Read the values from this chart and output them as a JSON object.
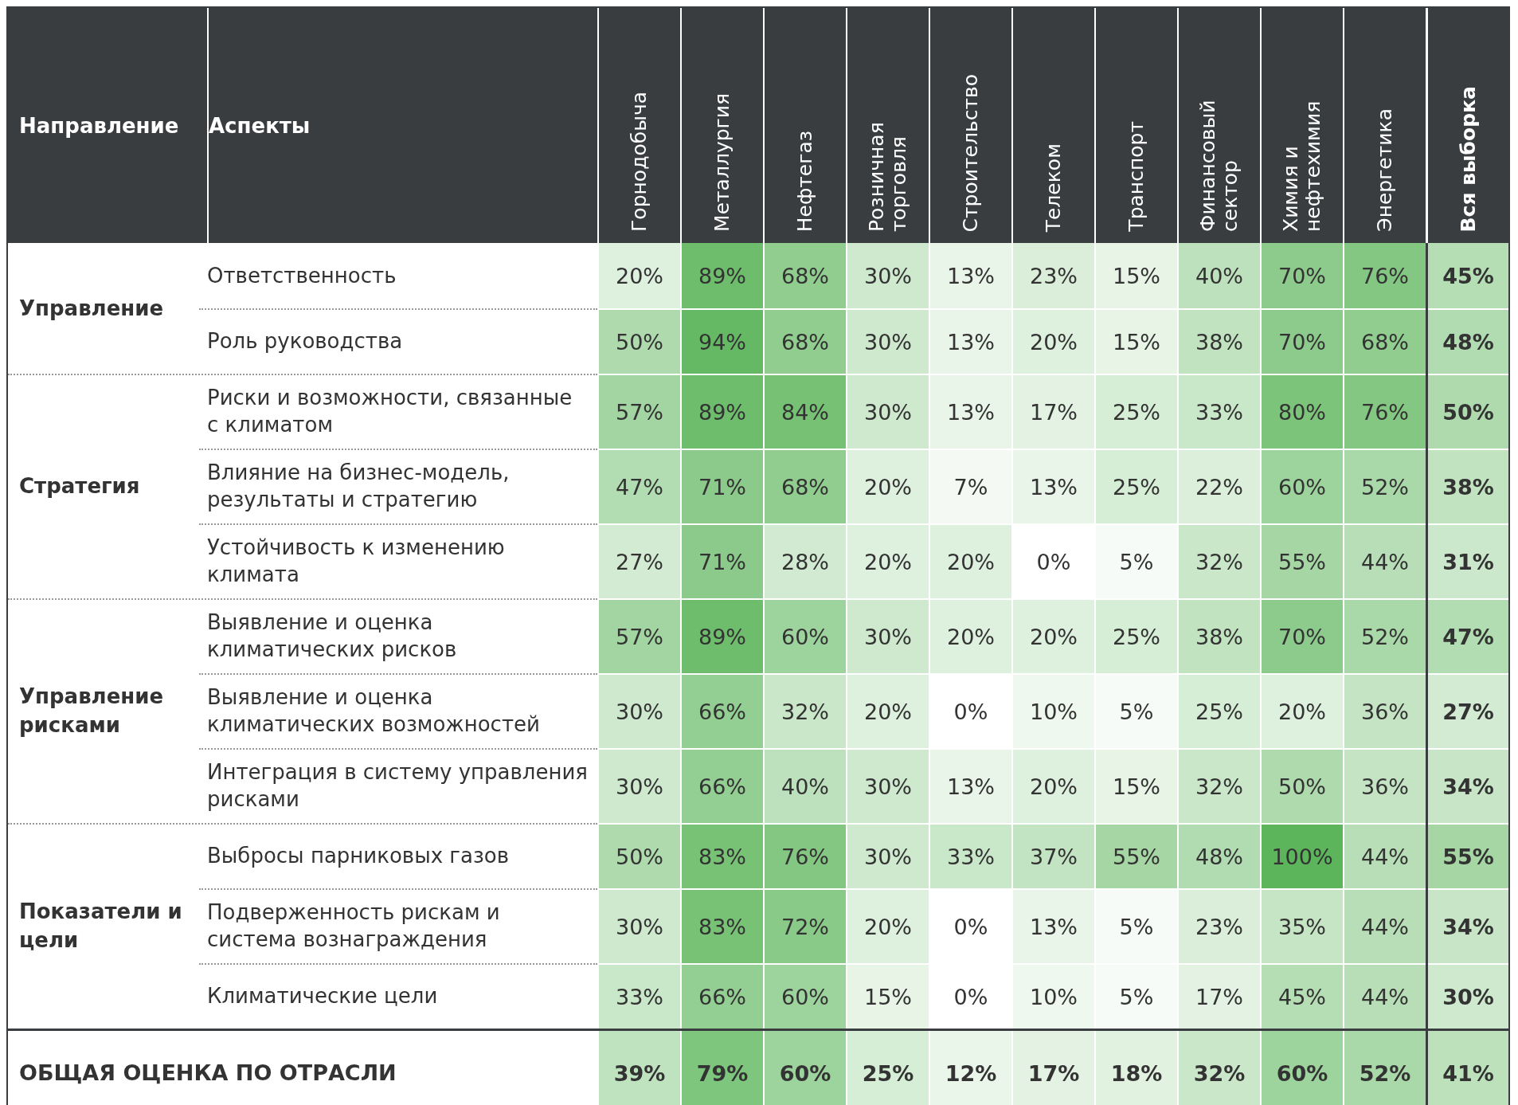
{
  "chart_data": {
    "type": "heatmap",
    "annotations": [
      "Направление"
    ],
    "ylabel": "Аспекты",
    "categories": [
      "Горнодобыча",
      "Металлургия",
      "Нефтегаз",
      "Розничная торговля",
      "Строительство",
      "Телеком",
      "Транспорт",
      "Финансовый сектор",
      "Химия и нефтехимия",
      "Энергетика",
      "Вся выборка"
    ],
    "y_categories": [
      "Ответственность",
      "Роль руководства",
      "Риски и возможности, связанные с климатом",
      "Влияние на бизнес-модель, результаты и стратегию",
      "Устойчивость к изменению климата",
      "Выявление и оценка климатических рисков",
      "Выявление и оценка климатических возможностей",
      "Интеграция в систему управления рисками",
      "Выбросы парниковых газов",
      "Подверженность рискам и система вознаграждения",
      "Климатические цели",
      null
    ],
    "y2_categories": [
      "Управление",
      null,
      null,
      "Стратегия",
      null,
      null,
      "Управление рисками",
      null,
      null,
      "Показатели и цели",
      null,
      "ОБЩАЯ ОЦЕНКА ПО ОТРАСЛИ"
    ],
    "colors": [
      "#ffffff",
      "#5cb55a"
    ],
    "cells": [
      [
        20,
        89,
        68,
        30,
        13,
        23,
        15,
        40,
        70,
        76,
        45
      ],
      [
        50,
        94,
        68,
        30,
        13,
        20,
        15,
        38,
        70,
        68,
        48
      ],
      [
        57,
        89,
        84,
        30,
        13,
        17,
        25,
        33,
        80,
        76,
        50
      ],
      [
        47,
        71,
        68,
        20,
        7,
        13,
        25,
        22,
        60,
        52,
        38
      ],
      [
        27,
        71,
        28,
        20,
        20,
        0,
        5,
        32,
        55,
        44,
        31
      ],
      [
        57,
        89,
        60,
        30,
        20,
        20,
        25,
        38,
        70,
        52,
        47
      ],
      [
        30,
        66,
        32,
        20,
        0,
        10,
        5,
        25,
        20,
        36,
        27
      ],
      [
        30,
        66,
        40,
        30,
        13,
        20,
        15,
        32,
        50,
        36,
        34
      ],
      [
        50,
        83,
        76,
        30,
        33,
        37,
        55,
        48,
        100,
        44,
        55
      ],
      [
        30,
        83,
        72,
        20,
        0,
        13,
        5,
        23,
        35,
        44,
        34
      ],
      [
        33,
        66,
        60,
        15,
        0,
        10,
        5,
        17,
        45,
        44,
        30
      ],
      [
        39,
        79,
        60,
        25,
        12,
        17,
        18,
        32,
        60,
        52,
        41
      ]
    ],
    "cell_labels": [
      [
        "20%",
        "89%",
        "68%",
        "30%",
        "13%",
        "23%",
        "15%",
        "40%",
        "70%",
        "76%",
        "45%"
      ],
      [
        "50%",
        "94%",
        "68%",
        "30%",
        "13%",
        "20%",
        "15%",
        "38%",
        "70%",
        "68%",
        "48%"
      ],
      [
        "57%",
        "89%",
        "84%",
        "30%",
        "13%",
        "17%",
        "25%",
        "33%",
        "80%",
        "76%",
        "50%"
      ],
      [
        "47%",
        "71%",
        "68%",
        "20%",
        "7%",
        "13%",
        "25%",
        "22%",
        "60%",
        "52%",
        "38%"
      ],
      [
        "27%",
        "71%",
        "28%",
        "20%",
        "20%",
        "0%",
        "5%",
        "32%",
        "55%",
        "44%",
        "31%"
      ],
      [
        "57%",
        "89%",
        "60%",
        "30%",
        "20%",
        "20%",
        "25%",
        "38%",
        "70%",
        "52%",
        "47%"
      ],
      [
        "30%",
        "66%",
        "32%",
        "20%",
        "0%",
        "10%",
        "5%",
        "25%",
        "20%",
        "36%",
        "27%"
      ],
      [
        "30%",
        "66%",
        "40%",
        "30%",
        "13%",
        "20%",
        "15%",
        "32%",
        "50%",
        "36%",
        "34%"
      ],
      [
        "50%",
        "83%",
        "76%",
        "30%",
        "33%",
        "37%",
        "55%",
        "48%",
        "100%",
        "44%",
        "55%"
      ],
      [
        "30%",
        "83%",
        "72%",
        "20%",
        "0%",
        "13%",
        "5%",
        "23%",
        "35%",
        "44%",
        "34%"
      ],
      [
        "33%",
        "66%",
        "60%",
        "15%",
        "0%",
        "10%",
        "5%",
        "17%",
        "45%",
        "44%",
        "30%"
      ],
      [
        "39%",
        "79%",
        "60%",
        "25%",
        "12%",
        "17%",
        "18%",
        "32%",
        "60%",
        "52%",
        "41%"
      ]
    ]
  }
}
